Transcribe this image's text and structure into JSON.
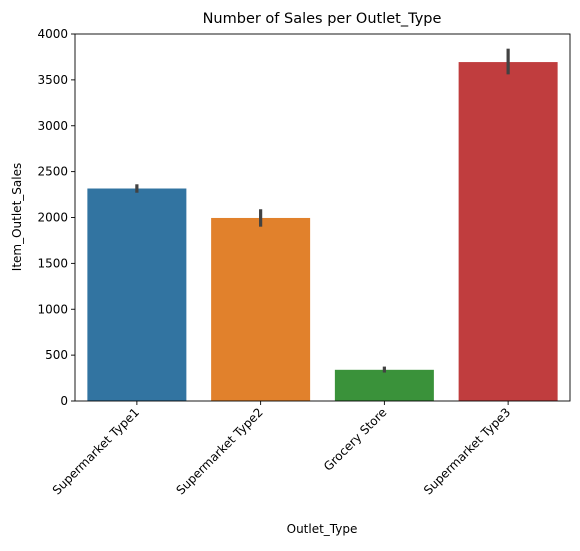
{
  "chart_data": {
    "type": "bar",
    "title": "Number of Sales per Outlet_Type",
    "xlabel": "Outlet_Type",
    "ylabel": "Item_Outlet_Sales",
    "categories": [
      "Supermarket Type1",
      "Supermarket Type2",
      "Grocery Store",
      "Supermarket Type3"
    ],
    "values": [
      2316,
      1995,
      340,
      3694
    ],
    "error_bars": [
      [
        2270,
        2362
      ],
      [
        1900,
        2090
      ],
      [
        310,
        375
      ],
      [
        3560,
        3840
      ]
    ],
    "colors": [
      "#3274a1",
      "#e1812c",
      "#3a923a",
      "#c03d3e"
    ],
    "error_bar_color": "#424242",
    "ylim": [
      0,
      4000
    ],
    "yticks": [
      0,
      500,
      1000,
      1500,
      2000,
      2500,
      3000,
      3500,
      4000
    ],
    "ytick_labels": [
      "0",
      "500",
      "1000",
      "1500",
      "2000",
      "2500",
      "3000",
      "3500",
      "4000"
    ],
    "xtick_rotation": 45,
    "grid": false,
    "legend": false
  }
}
